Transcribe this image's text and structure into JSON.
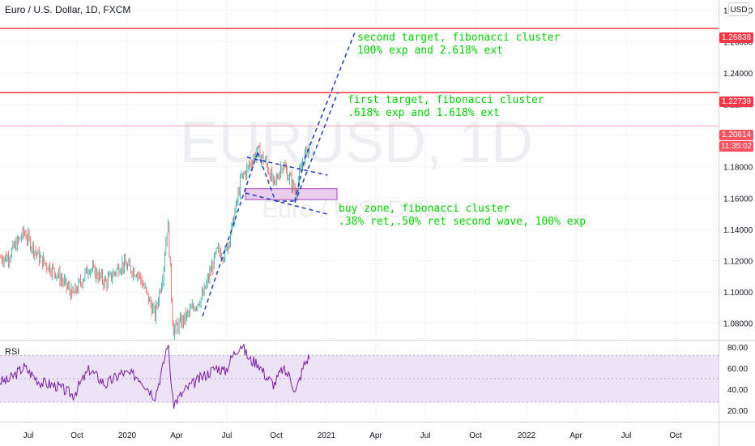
{
  "header": {
    "symbol_line": "Euro / U.S. Dollar, 1D, FXCM",
    "currency": "USD"
  },
  "watermark": {
    "symbol": "EURUSD, 1D",
    "description": "Euro / U.S. Dollar"
  },
  "rsi_panel": {
    "label": "RSI"
  },
  "annotations": {
    "second_target": [
      "second target, fibonacci cluster",
      "100% exp and 2.618% ext"
    ],
    "first_target": [
      " first target, fibonacci cluster",
      ".618% exp and 1.618% ext"
    ],
    "buy_zone": [
      "buy zone, fibonacci cluster",
      ".38% ret,.50% ret second wave, 100% exp"
    ]
  },
  "price_markers": {
    "second_target": {
      "value": "1.26838",
      "color": "#f23645"
    },
    "first_target": {
      "value": "1.22739",
      "color": "#f23645"
    },
    "last_price": {
      "value": "1.20614",
      "color": "#f7525f"
    },
    "countdown": {
      "value": "11:35:02",
      "color": "#f7525f"
    }
  },
  "colors": {
    "up": "#26a69a",
    "down": "#ef5350",
    "hline": "#f23645",
    "trend": "#1f3fbf",
    "rsi_line": "#7b1fa2",
    "rsi_band": "#ede3f7",
    "buy_zone": "#e1bee7",
    "annotation": "#00d000"
  },
  "chart_data": [
    {
      "type": "candlestick",
      "title": "Euro / U.S. Dollar, 1D, FXCM",
      "ylabel": "USD",
      "ylim": [
        1.07,
        1.285
      ],
      "y_ticks": [
        1.08,
        1.1,
        1.12,
        1.14,
        1.16,
        1.18,
        1.2,
        1.22,
        1.24,
        1.26,
        1.28
      ],
      "x_ticks": [
        "Jul",
        "Oct",
        "2020",
        "Apr",
        "Jul",
        "Oct",
        "2021",
        "Apr",
        "Jul",
        "Oct",
        "2022",
        "Apr",
        "Jul",
        "Oct"
      ],
      "close_series": {
        "x": [
          "2019-05-15",
          "2019-06-15",
          "2019-07-15",
          "2019-08-15",
          "2019-09-15",
          "2019-10-15",
          "2019-11-15",
          "2019-12-15",
          "2020-01-15",
          "2020-02-15",
          "2020-03-01",
          "2020-03-10",
          "2020-03-20",
          "2020-04-15",
          "2020-05-15",
          "2020-06-10",
          "2020-06-25",
          "2020-07-10",
          "2020-07-25",
          "2020-08-10",
          "2020-08-25",
          "2020-09-10",
          "2020-09-25",
          "2020-10-10",
          "2020-10-25",
          "2020-11-04",
          "2020-11-20",
          "2020-12-01"
        ],
        "close": [
          1.122,
          1.138,
          1.121,
          1.112,
          1.098,
          1.116,
          1.106,
          1.118,
          1.112,
          1.085,
          1.112,
          1.146,
          1.075,
          1.085,
          1.098,
          1.126,
          1.124,
          1.144,
          1.172,
          1.181,
          1.19,
          1.182,
          1.168,
          1.182,
          1.172,
          1.164,
          1.186,
          1.194
        ]
      },
      "horizontal_lines": [
        1.26838,
        1.22739,
        1.20614
      ],
      "buy_zone": [
        1.159,
        1.166
      ],
      "last_price": 1.20614
    },
    {
      "type": "line",
      "title": "RSI",
      "ylim": [
        15,
        85
      ],
      "y_ticks": [
        20,
        40,
        60,
        80
      ],
      "band": [
        30,
        70
      ],
      "x": [
        "2019-05-15",
        "2019-06-15",
        "2019-07-15",
        "2019-08-15",
        "2019-09-15",
        "2019-10-15",
        "2019-11-15",
        "2019-12-15",
        "2020-01-15",
        "2020-02-15",
        "2020-03-01",
        "2020-03-10",
        "2020-03-20",
        "2020-04-15",
        "2020-05-15",
        "2020-06-10",
        "2020-06-25",
        "2020-07-10",
        "2020-07-25",
        "2020-08-10",
        "2020-08-25",
        "2020-09-10",
        "2020-09-25",
        "2020-10-10",
        "2020-10-25",
        "2020-11-04",
        "2020-11-20",
        "2020-12-01"
      ],
      "values": [
        48,
        60,
        47,
        44,
        36,
        58,
        45,
        55,
        52,
        35,
        60,
        82,
        28,
        42,
        52,
        60,
        56,
        70,
        80,
        66,
        64,
        52,
        45,
        58,
        52,
        38,
        62,
        70
      ]
    }
  ]
}
